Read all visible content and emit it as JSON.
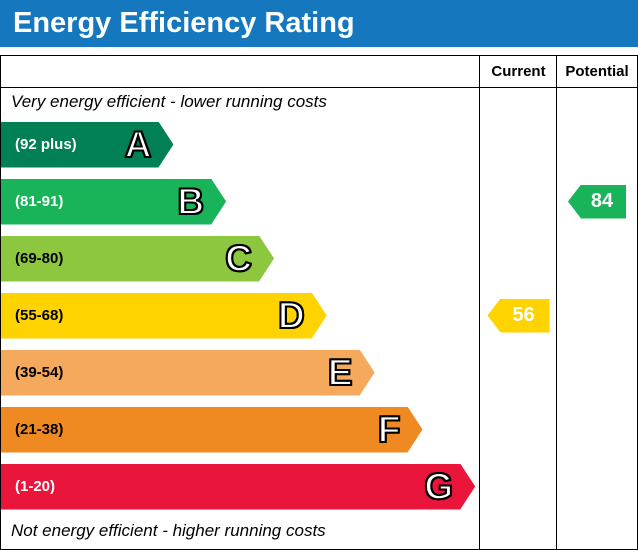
{
  "title": "Energy Efficiency Rating",
  "title_bar_color": "#1577bd",
  "header": {
    "current": "Current",
    "potential": "Potential"
  },
  "notes": {
    "top": "Very energy efficient - lower running costs",
    "bottom": "Not energy efficient - higher running costs"
  },
  "chart_data": {
    "type": "bar",
    "title": "Energy Efficiency Rating",
    "bands": [
      {
        "letter": "A",
        "range": "(92 plus)",
        "color": "#008054",
        "width": "36%",
        "text_color": "#ffffff"
      },
      {
        "letter": "B",
        "range": "(81-91)",
        "color": "#19b459",
        "width": "47%",
        "text_color": "#ffffff"
      },
      {
        "letter": "C",
        "range": "(69-80)",
        "color": "#8dc63f",
        "width": "57%",
        "text_color": "#000000"
      },
      {
        "letter": "D",
        "range": "(55-68)",
        "color": "#fed300",
        "width": "68%",
        "text_color": "#000000"
      },
      {
        "letter": "E",
        "range": "(39-54)",
        "color": "#f4a95c",
        "width": "78%",
        "text_color": "#000000"
      },
      {
        "letter": "F",
        "range": "(21-38)",
        "color": "#ef8a23",
        "width": "88%",
        "text_color": "#000000"
      },
      {
        "letter": "G",
        "range": "(1-20)",
        "color": "#e9153b",
        "width": "99%",
        "text_color": "#ffffff"
      }
    ],
    "ratings": {
      "current": {
        "value": "56",
        "color": "#fed300",
        "band_index": 3
      },
      "potential": {
        "value": "84",
        "color": "#19b459",
        "band_index": 1
      }
    }
  }
}
